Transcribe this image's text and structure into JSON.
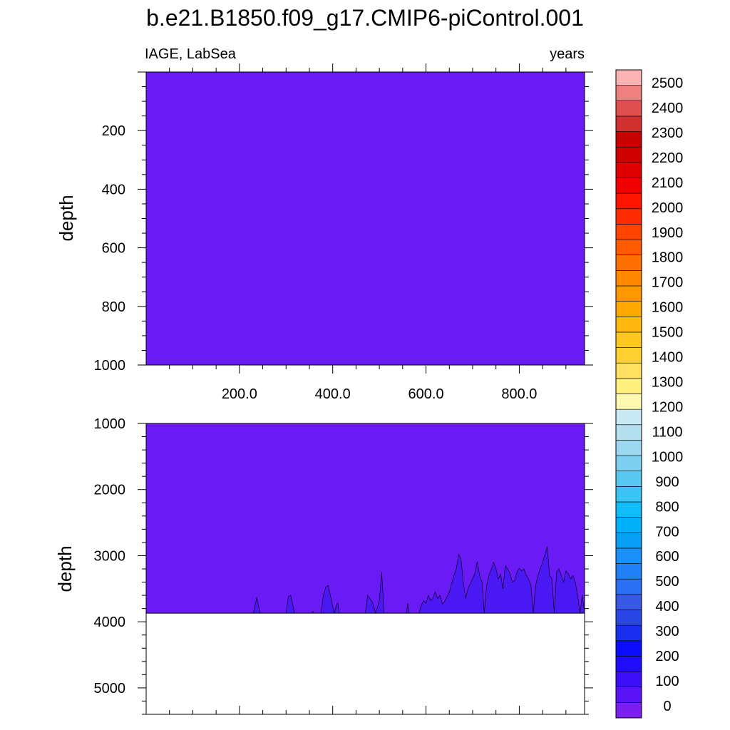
{
  "chart_data": {
    "type": "heatmap",
    "title": "b.e21.B1850.f09_g17.CMIP6-piControl.001",
    "left_string": "IAGE, LabSea",
    "right_string": "years",
    "colors": {
      "background_fill": "#6a1af5",
      "deep_fill": "#4a18f2",
      "outline": "#000000"
    },
    "panels": [
      {
        "name": "upper",
        "ylabel": "depth",
        "ylim": [
          0,
          1000
        ],
        "y_ticks": [
          "200",
          "400",
          "600",
          "800",
          "1000"
        ],
        "y_tick_values": [
          200,
          400,
          600,
          800,
          1000
        ],
        "xlim": [
          0,
          940
        ],
        "x_ticks": [
          "200.0",
          "400.0",
          "600.0",
          "800.0"
        ],
        "x_tick_values": [
          200,
          400,
          600,
          800
        ]
      },
      {
        "name": "lower",
        "ylabel": "depth",
        "ylim": [
          1000,
          5400
        ],
        "y_ticks": [
          "1000",
          "2000",
          "3000",
          "4000",
          "5000"
        ],
        "y_tick_values": [
          1000,
          2000,
          3000,
          4000,
          5000
        ],
        "xlim": [
          0,
          940
        ],
        "bottom_depth": 3870,
        "deep_contour": {
          "level": 100,
          "x": [
            0,
            230,
            237,
            244,
            300,
            305,
            310,
            318,
            355,
            357,
            360,
            375,
            380,
            385,
            390,
            395,
            403,
            408,
            411,
            414,
            470,
            475,
            480,
            485,
            492,
            500,
            505,
            510,
            558,
            561,
            564,
            585,
            590,
            595,
            600,
            605,
            610,
            615,
            620,
            625,
            630,
            635,
            640,
            650,
            655,
            660,
            665,
            670,
            675,
            680,
            685,
            690,
            695,
            700,
            705,
            710,
            715,
            720,
            725,
            730,
            735,
            740,
            745,
            750,
            755,
            760,
            765,
            770,
            775,
            780,
            785,
            790,
            795,
            800,
            805,
            810,
            815,
            820,
            825,
            830,
            835,
            840,
            845,
            850,
            855,
            860,
            865,
            870,
            875,
            880,
            885,
            890,
            895,
            900,
            905,
            910,
            915,
            920,
            925,
            930,
            935,
            940
          ],
          "depth": [
            3870,
            3870,
            3630,
            3870,
            3870,
            3620,
            3600,
            3870,
            3870,
            3840,
            3870,
            3870,
            3600,
            3480,
            3450,
            3600,
            3870,
            3750,
            3720,
            3870,
            3870,
            3600,
            3650,
            3700,
            3870,
            3680,
            3250,
            3870,
            3870,
            3720,
            3870,
            3870,
            3750,
            3680,
            3720,
            3600,
            3680,
            3640,
            3550,
            3650,
            3600,
            3730,
            3690,
            3550,
            3420,
            3300,
            3200,
            2980,
            3050,
            3400,
            3650,
            3500,
            3420,
            3350,
            3260,
            3090,
            3300,
            3400,
            3870,
            3450,
            3300,
            3210,
            3100,
            3200,
            3350,
            3280,
            3500,
            3150,
            3200,
            3270,
            3400,
            3380,
            3250,
            3190,
            3230,
            3200,
            3300,
            3350,
            3450,
            3870,
            3450,
            3300,
            3200,
            3100,
            2980,
            2860,
            3300,
            3350,
            3870,
            3250,
            3200,
            3300,
            3400,
            3230,
            3270,
            3350,
            3300,
            3400,
            3600,
            3870,
            3600,
            3870
          ]
        }
      }
    ],
    "colorbar": {
      "labels": [
        "0",
        "100",
        "200",
        "300",
        "400",
        "500",
        "600",
        "700",
        "800",
        "900",
        "1000",
        "1100",
        "1200",
        "1300",
        "1400",
        "1500",
        "1600",
        "1700",
        "1800",
        "1900",
        "2000",
        "2100",
        "2200",
        "2300",
        "2400",
        "2500"
      ],
      "colors": [
        "#7a1ff0",
        "#5a14f5",
        "#3c0ff8",
        "#1e0cfa",
        "#0a0cfa",
        "#1b30ee",
        "#2a47e6",
        "#3a58e8",
        "#2a70f5",
        "#2080f8",
        "#1a90f8",
        "#0aa0f8",
        "#00b0f8",
        "#10bdf8",
        "#3ac4f5",
        "#58c8f2",
        "#7dd0f0",
        "#9cd8ef",
        "#b4e0f0",
        "#c8e8f4",
        "#fff8b0",
        "#fff080",
        "#ffe060",
        "#ffd030",
        "#ffc820",
        "#ffb810",
        "#ffa800",
        "#ff9800",
        "#ff8800",
        "#ff7000",
        "#ff5a00",
        "#ff4400",
        "#ff2c00",
        "#ff1400",
        "#f00000",
        "#e00000",
        "#d00000",
        "#c80000",
        "#d03030",
        "#e05050",
        "#f08080",
        "#fbb4b4"
      ]
    }
  }
}
